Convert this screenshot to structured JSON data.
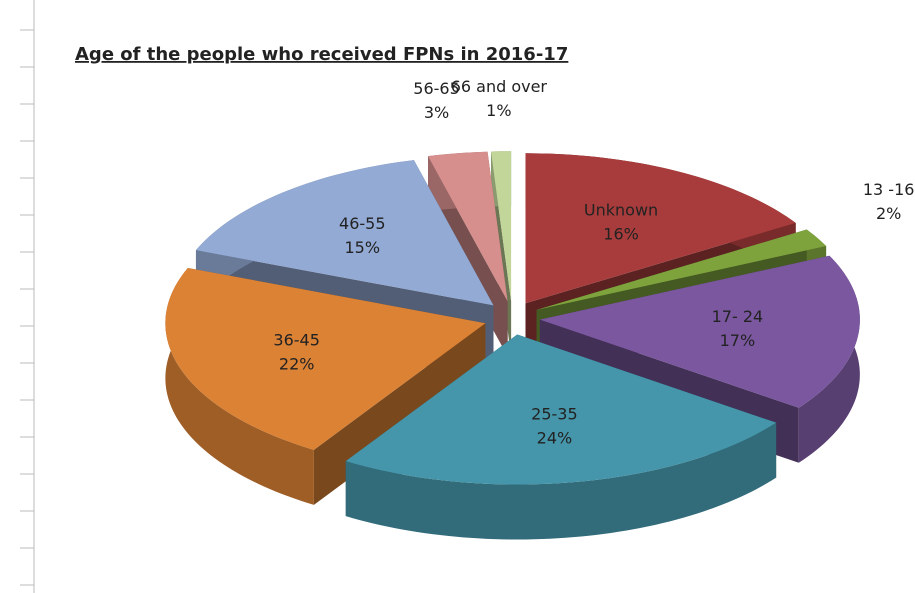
{
  "chart_data": {
    "type": "pie",
    "title": "Age of the people who received FPNs in 2016-17",
    "categories": [
      "Unknown",
      "13 -16",
      "17- 24",
      "25-35",
      "36-45",
      "46-55",
      "56-65",
      "66 and over"
    ],
    "values": [
      16,
      2,
      17,
      24,
      22,
      15,
      3,
      1
    ],
    "value_labels": [
      "16%",
      "2%",
      "17%",
      "24%",
      "22%",
      "15%",
      "3%",
      "1%"
    ],
    "colors": [
      "#a83c3c",
      "#7ea33d",
      "#7a579f",
      "#4596ab",
      "#dc8235",
      "#93aad4",
      "#d68f8d",
      "#c2d69a"
    ]
  }
}
